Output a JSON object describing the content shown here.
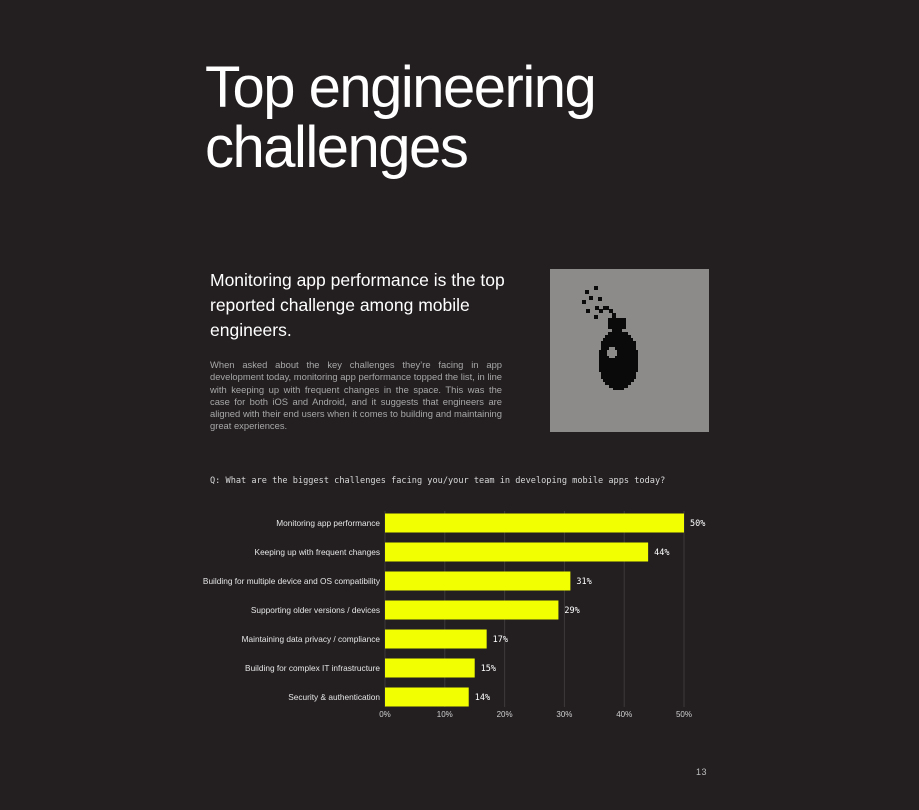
{
  "page": {
    "title_line1": "Top engineering",
    "title_line2": "challenges",
    "subtitle": "Monitoring app performance is the top reported challenge among mobile engineers.",
    "body": "When asked about the key challenges they’re facing in app development today, monitoring app performance topped the list, in line with keeping up with frequent changes in the space. This was the case for both iOS and Android, and it suggests that engineers are aligned with their end users when it comes to building and maintaining great experiences.",
    "question": "Q: What are the biggest challenges facing you/your team in developing mobile apps today?",
    "page_number": "13",
    "illustration_icon": "bomb-icon"
  },
  "colors": {
    "background": "#231f20",
    "bar": "#f2ff00",
    "illustration_bg": "#8c8b89"
  },
  "chart_data": {
    "type": "bar",
    "orientation": "horizontal",
    "categories": [
      "Monitoring app performance",
      "Keeping up with frequent changes",
      "Building for multiple device and OS compatibility",
      "Supporting older versions / devices",
      "Maintaining data privacy / compliance",
      "Building for complex IT infrastructure",
      "Security & authentication"
    ],
    "values": [
      50,
      44,
      31,
      29,
      17,
      15,
      14
    ],
    "value_labels": [
      "50%",
      "44%",
      "31%",
      "29%",
      "17%",
      "15%",
      "14%"
    ],
    "xlim": [
      0,
      50
    ],
    "xticks": [
      0,
      10,
      20,
      30,
      40,
      50
    ],
    "xtick_labels": [
      "0%",
      "10%",
      "20%",
      "30%",
      "40%",
      "50%"
    ],
    "grid": "vertical"
  }
}
